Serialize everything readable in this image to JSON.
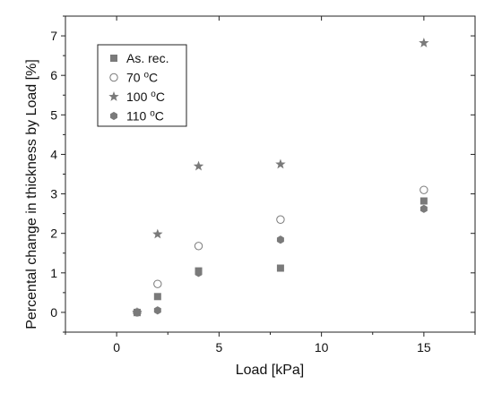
{
  "chart_data": {
    "type": "scatter",
    "xlabel": "Load [kPa]",
    "ylabel": "Percental change in thickness by Load [%]",
    "xlim": [
      -2.5,
      17.5
    ],
    "ylim": [
      -0.5,
      7.5
    ],
    "x_ticks": [
      0,
      5,
      10,
      15
    ],
    "x_tick_labels": [
      "0",
      "5",
      "10",
      "15"
    ],
    "y_ticks": [
      0,
      1,
      2,
      3,
      4,
      5,
      6,
      7
    ],
    "y_tick_labels": [
      "0",
      "1",
      "2",
      "3",
      "4",
      "5",
      "6",
      "7"
    ],
    "grid": false,
    "legend_position": "top-left",
    "series": [
      {
        "name": "As. rec.",
        "marker": "square",
        "x": [
          1,
          2,
          4,
          8,
          15
        ],
        "y": [
          0.0,
          0.4,
          1.05,
          1.12,
          2.82
        ]
      },
      {
        "name": "70 °C",
        "marker": "circle-open",
        "x": [
          1,
          2,
          4,
          8,
          15
        ],
        "y": [
          0.0,
          0.72,
          1.68,
          2.35,
          3.1
        ]
      },
      {
        "name": "100 °C",
        "marker": "star",
        "x": [
          1,
          2,
          4,
          8,
          15
        ],
        "y": [
          0.0,
          1.98,
          3.7,
          3.75,
          6.82
        ]
      },
      {
        "name": "110 °C",
        "marker": "hexagon",
        "x": [
          1,
          2,
          4,
          8,
          15
        ],
        "y": [
          0.0,
          0.05,
          1.0,
          1.84,
          2.62
        ]
      }
    ],
    "legend": [
      {
        "name": "As. rec."
      },
      {
        "name": "70",
        "sup": "o",
        "unit": "C"
      },
      {
        "name": "100",
        "sup": "o",
        "unit": "C"
      },
      {
        "name": "110",
        "sup": "o",
        "unit": "C"
      }
    ],
    "colors": {
      "marker": "#7a7a7a",
      "axis": "#222222"
    }
  }
}
